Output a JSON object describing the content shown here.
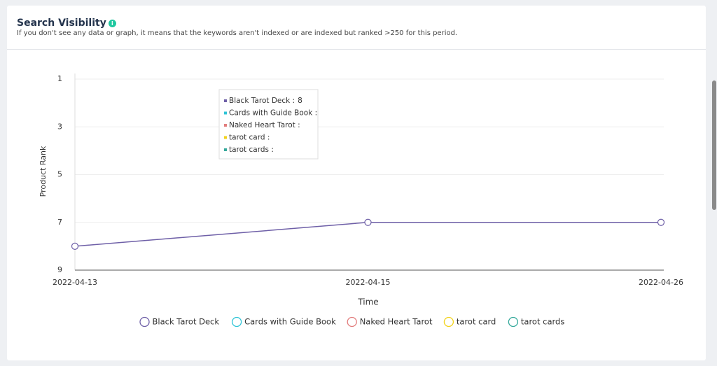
{
  "header": {
    "title": "Search Visibility",
    "subtitle": "If you don't see any data or graph, it means that the keywords aren't indexed or are indexed but ranked >250 for this period."
  },
  "chart_data": {
    "type": "line",
    "x_label": "Time",
    "y_label": "Product Rank",
    "categories": [
      "2022-04-13",
      "2022-04-15",
      "2022-04-26"
    ],
    "series": [
      {
        "name": "Black Tarot Deck",
        "color": "#6e5fa7",
        "values": [
          8,
          7,
          7
        ]
      },
      {
        "name": "Cards with Guide Book",
        "color": "#2ec4d6",
        "values": [
          null,
          null,
          null
        ]
      },
      {
        "name": "Naked Heart Tarot",
        "color": "#e27d7d",
        "values": [
          null,
          null,
          null
        ]
      },
      {
        "name": "tarot card",
        "color": "#f2d21b",
        "values": [
          null,
          null,
          null
        ]
      },
      {
        "name": "tarot cards",
        "color": "#35a99b",
        "values": [
          null,
          null,
          null
        ]
      }
    ],
    "ylim": [
      9,
      1
    ],
    "yticks": [
      1,
      3,
      5,
      7,
      9
    ],
    "grid": true,
    "legend": "bottom",
    "tooltip": {
      "items": [
        "Black Tarot Deck :",
        "Cards with Guide Book :",
        "Naked Heart Tarot :",
        "tarot card :",
        "tarot cards :"
      ]
    }
  }
}
